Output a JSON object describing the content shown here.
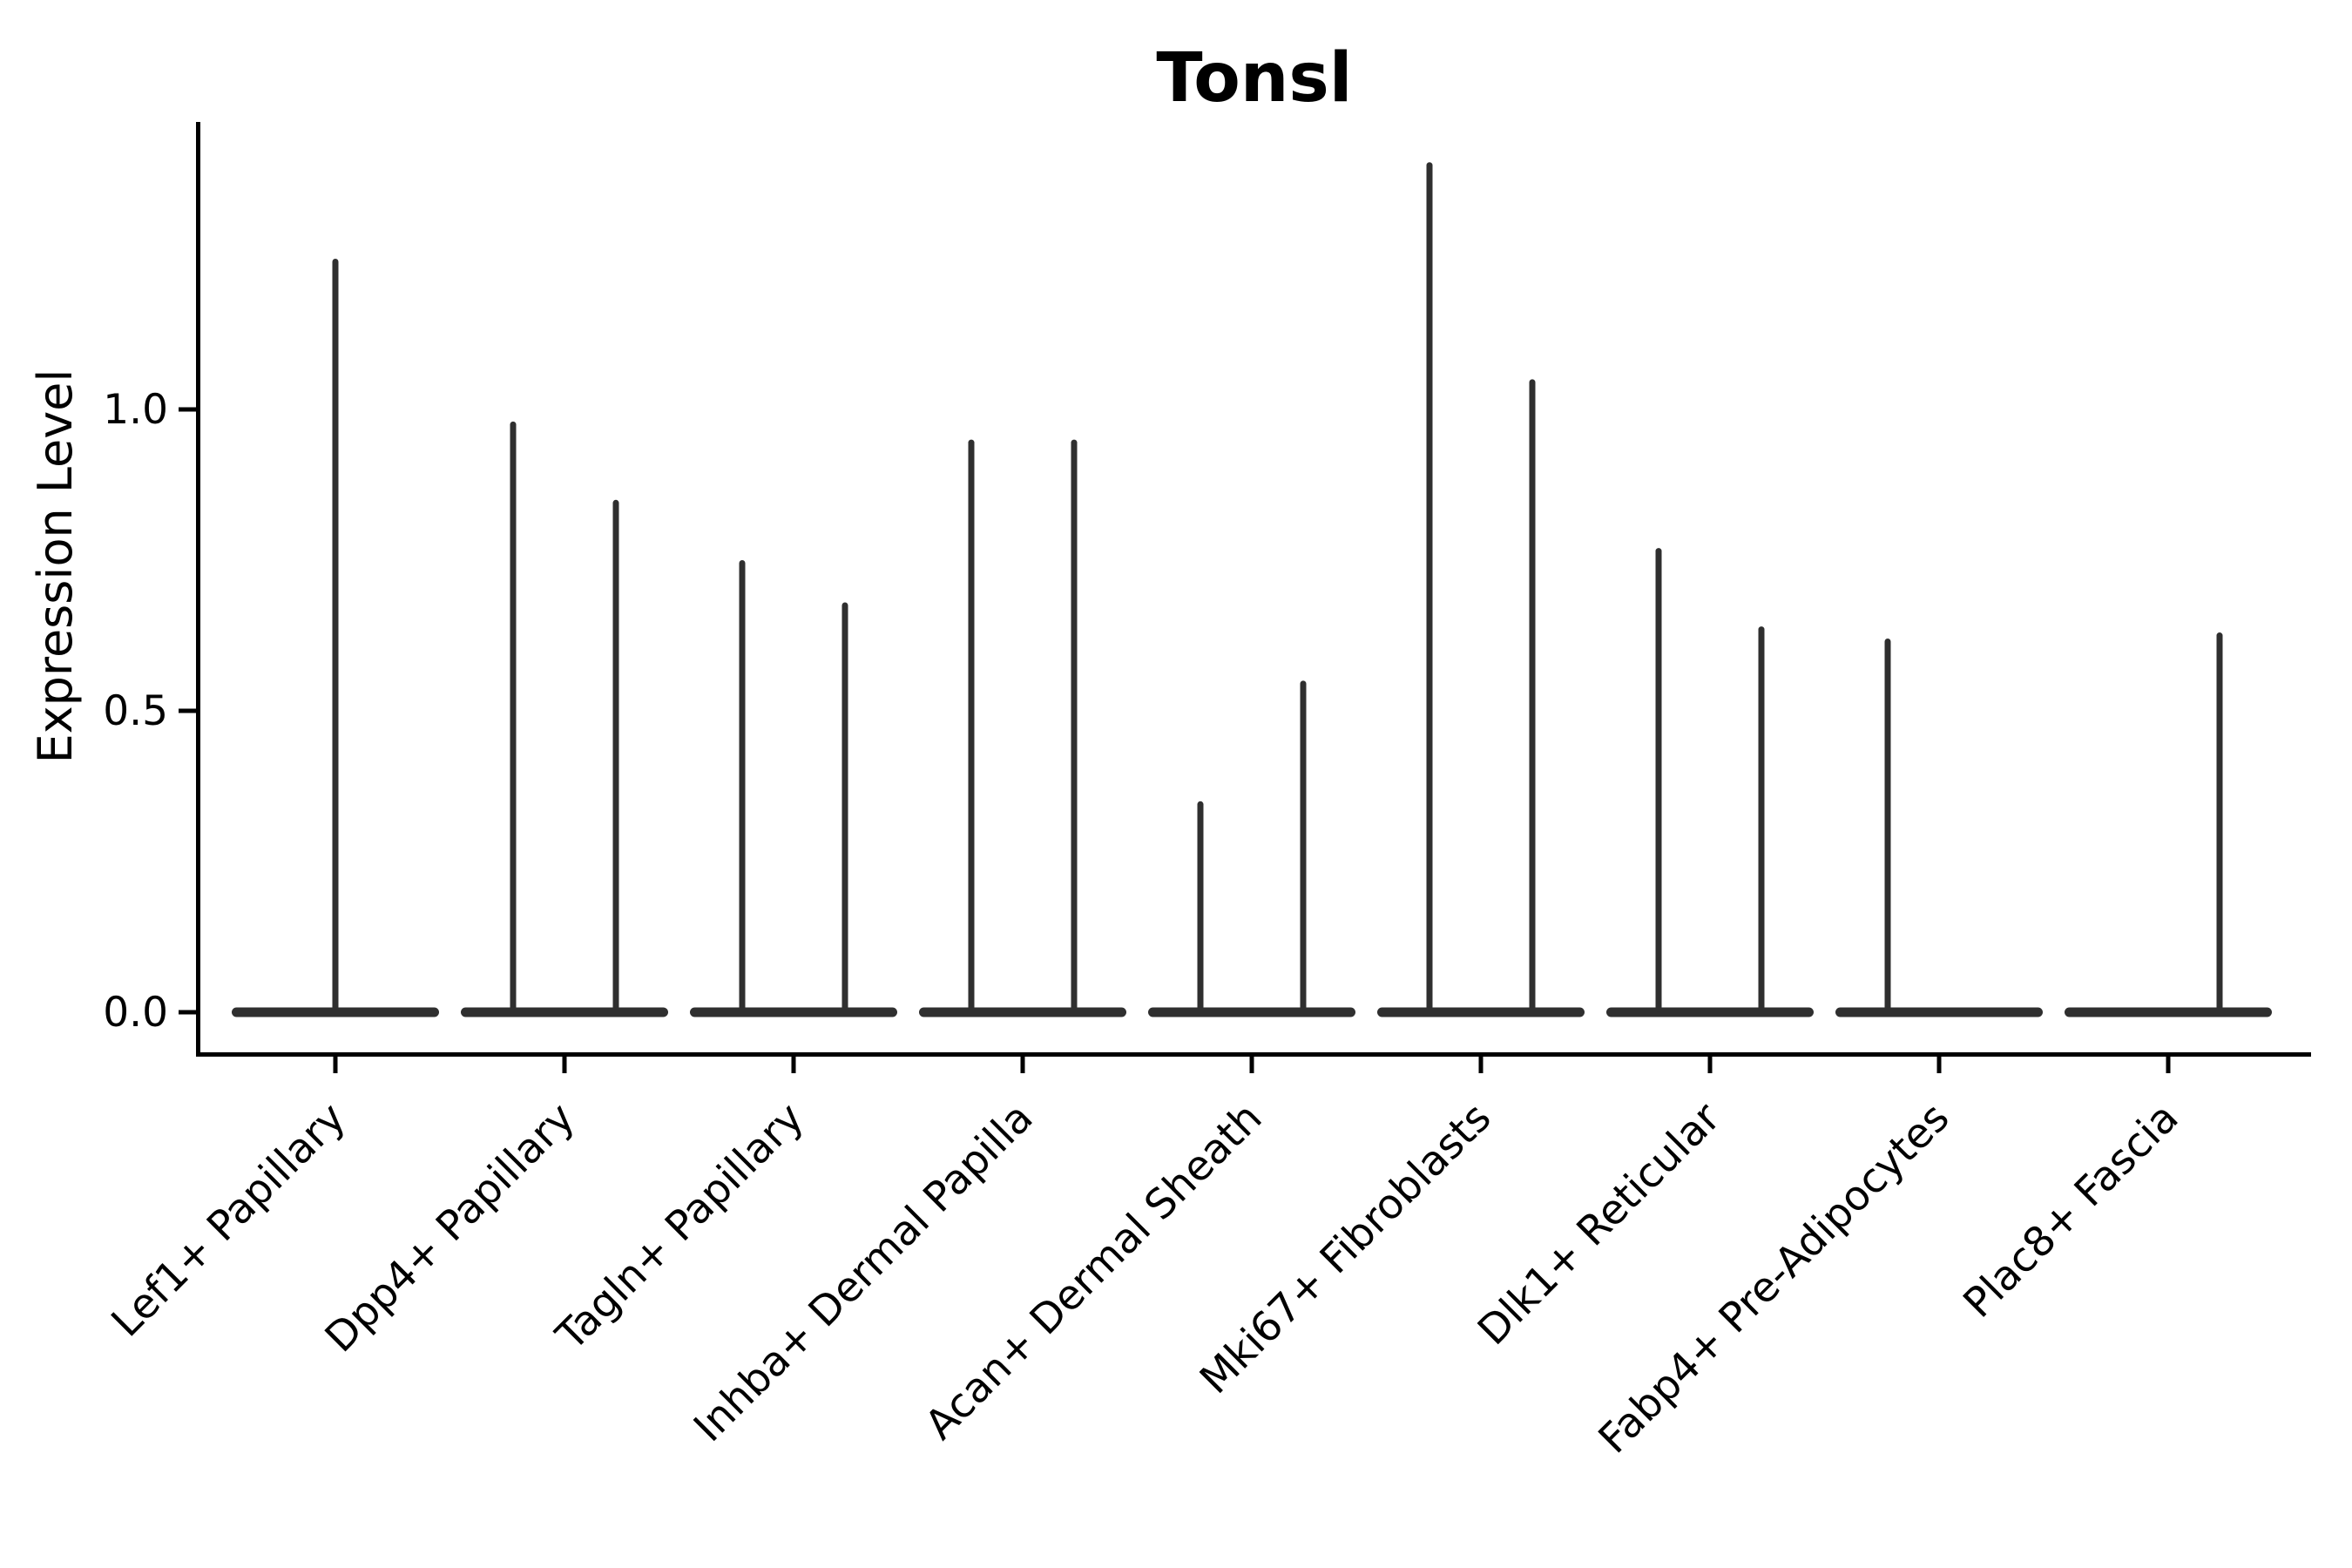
{
  "page": {
    "background": "#ffffff"
  },
  "chart_data": {
    "type": "violin",
    "title": "Tonsl",
    "xlabel": "",
    "ylabel": "Expression Level",
    "legend": "none",
    "grid": false,
    "ylim": [
      0.0,
      1.48
    ],
    "ytick_labels": [
      "0.0",
      "0.5",
      "1.0"
    ],
    "ytick_values": [
      0.0,
      0.5,
      1.0
    ],
    "colors": {
      "violin": "#2f2f2f",
      "axis": "#000000",
      "text": "#000000",
      "background": "#ffffff"
    },
    "categories": [
      "Lef1+ Papillary",
      "Dpp4+ Papillary",
      "Tagln+ Papillary",
      "Inhba+ Dermal Papilla",
      "Acan+ Dermal Sheath",
      "Mki67+ Fibroblasts",
      "Dlk1+ Reticular",
      "Fabp4+ Pre-Adipocytes",
      "Plac8+ Fascia"
    ],
    "violins": [
      {
        "category": "Lef1+ Papillary",
        "baseline_expression": 0.0,
        "spikes": [
          {
            "position": "center",
            "max_expression": 1.25
          }
        ]
      },
      {
        "category": "Dpp4+ Papillary",
        "baseline_expression": 0.0,
        "spikes": [
          {
            "position": "left",
            "max_expression": 0.98
          },
          {
            "position": "right",
            "max_expression": 0.85
          }
        ]
      },
      {
        "category": "Tagln+ Papillary",
        "baseline_expression": 0.0,
        "spikes": [
          {
            "position": "left",
            "max_expression": 0.75
          },
          {
            "position": "right",
            "max_expression": 0.68
          }
        ]
      },
      {
        "category": "Inhba+ Dermal Papilla",
        "baseline_expression": 0.0,
        "spikes": [
          {
            "position": "left",
            "max_expression": 0.95
          },
          {
            "position": "right",
            "max_expression": 0.95
          }
        ]
      },
      {
        "category": "Acan+ Dermal Sheath",
        "baseline_expression": 0.0,
        "spikes": [
          {
            "position": "left",
            "max_expression": 0.35
          },
          {
            "position": "right",
            "max_expression": 0.55
          }
        ]
      },
      {
        "category": "Mki67+ Fibroblasts",
        "baseline_expression": 0.0,
        "spikes": [
          {
            "position": "left",
            "max_expression": 1.41
          },
          {
            "position": "right",
            "max_expression": 1.05
          }
        ]
      },
      {
        "category": "Dlk1+ Reticular",
        "baseline_expression": 0.0,
        "spikes": [
          {
            "position": "left",
            "max_expression": 0.77
          },
          {
            "position": "right",
            "max_expression": 0.64
          }
        ]
      },
      {
        "category": "Fabp4+ Pre-Adipocytes",
        "baseline_expression": 0.0,
        "spikes": [
          {
            "position": "left",
            "max_expression": 0.62
          }
        ]
      },
      {
        "category": "Plac8+ Fascia",
        "baseline_expression": 0.0,
        "spikes": [
          {
            "position": "right",
            "max_expression": 0.63
          }
        ]
      }
    ]
  }
}
